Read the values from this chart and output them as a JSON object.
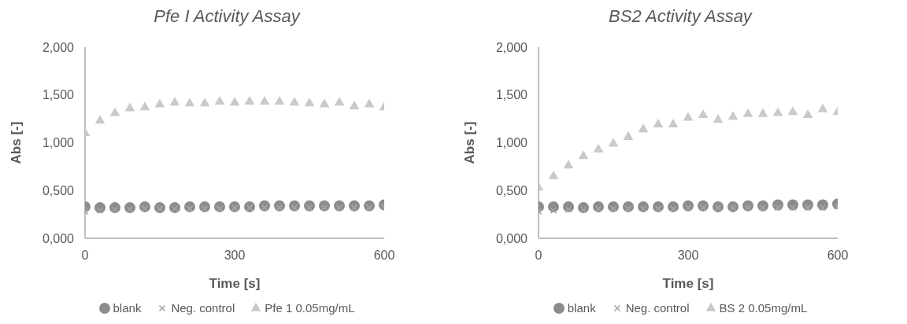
{
  "chart_data": [
    {
      "type": "scatter",
      "title": "Pfe I Activity Assay",
      "xlabel": "Time [s]",
      "ylabel": "Abs [-]",
      "x": [
        0,
        30,
        60,
        90,
        120,
        150,
        180,
        210,
        240,
        270,
        300,
        330,
        360,
        390,
        420,
        450,
        480,
        510,
        540,
        570,
        600
      ],
      "xlim": [
        0,
        600
      ],
      "xticks": [
        0,
        300,
        600
      ],
      "ylim": [
        0,
        2
      ],
      "yticks": [
        {
          "value": 0,
          "label": "0,000"
        },
        {
          "value": 0.5,
          "label": "0,500"
        },
        {
          "value": 1,
          "label": "1,000"
        },
        {
          "value": 1.5,
          "label": "1,500"
        },
        {
          "value": 2,
          "label": "2,000"
        }
      ],
      "grid": false,
      "legend": "bottom",
      "series": [
        {
          "name": "blank",
          "color": "#8c8c8c",
          "marker": "circle",
          "values": [
            0.33,
            0.32,
            0.32,
            0.32,
            0.33,
            0.32,
            0.32,
            0.33,
            0.33,
            0.33,
            0.33,
            0.33,
            0.34,
            0.34,
            0.34,
            0.34,
            0.34,
            0.34,
            0.34,
            0.34,
            0.35
          ]
        },
        {
          "name": "Neg. control",
          "color": "#a5a5a5",
          "marker": "cross",
          "values": [
            0.28,
            0.29,
            0.3,
            0.3,
            0.31,
            0.31,
            0.31,
            0.31,
            0.31,
            0.31,
            0.32,
            0.32,
            0.32,
            0.32,
            0.32,
            0.32,
            0.32,
            0.32,
            0.32,
            0.32,
            0.33
          ]
        },
        {
          "name": "Pfe 1 0.05mg/mL",
          "color": "#c9c9c9",
          "marker": "triangle",
          "values": [
            1.1,
            1.23,
            1.31,
            1.36,
            1.37,
            1.4,
            1.42,
            1.41,
            1.41,
            1.43,
            1.42,
            1.43,
            1.43,
            1.43,
            1.42,
            1.41,
            1.4,
            1.42,
            1.38,
            1.4,
            1.37
          ]
        }
      ]
    },
    {
      "type": "scatter",
      "title": "BS2 Activity Assay",
      "xlabel": "Time [s]",
      "ylabel": "Abs [-]",
      "x": [
        0,
        30,
        60,
        90,
        120,
        150,
        180,
        210,
        240,
        270,
        300,
        330,
        360,
        390,
        420,
        450,
        480,
        510,
        540,
        570,
        600
      ],
      "xlim": [
        0,
        600
      ],
      "xticks": [
        0,
        300,
        600
      ],
      "ylim": [
        0,
        2
      ],
      "yticks": [
        {
          "value": 0,
          "label": "0,000"
        },
        {
          "value": 0.5,
          "label": "0,500"
        },
        {
          "value": 1,
          "label": "1,000"
        },
        {
          "value": 1.5,
          "label": "1,500"
        },
        {
          "value": 2,
          "label": "2,000"
        }
      ],
      "grid": false,
      "legend": "bottom",
      "series": [
        {
          "name": "blank",
          "color": "#8c8c8c",
          "marker": "circle",
          "values": [
            0.33,
            0.33,
            0.33,
            0.32,
            0.33,
            0.33,
            0.33,
            0.33,
            0.33,
            0.33,
            0.34,
            0.34,
            0.33,
            0.33,
            0.34,
            0.34,
            0.35,
            0.35,
            0.35,
            0.35,
            0.36
          ]
        },
        {
          "name": "Neg. control",
          "color": "#a5a5a5",
          "marker": "cross",
          "values": [
            0.28,
            0.29,
            0.3,
            0.3,
            0.31,
            0.31,
            0.31,
            0.31,
            0.31,
            0.31,
            0.32,
            0.32,
            0.32,
            0.32,
            0.32,
            0.32,
            0.32,
            0.32,
            0.32,
            0.32,
            0.33
          ]
        },
        {
          "name": "BS 2 0.05mg/mL",
          "color": "#c9c9c9",
          "marker": "triangle",
          "values": [
            0.53,
            0.65,
            0.76,
            0.86,
            0.93,
            0.99,
            1.06,
            1.14,
            1.19,
            1.19,
            1.26,
            1.29,
            1.24,
            1.27,
            1.3,
            1.3,
            1.31,
            1.32,
            1.29,
            1.35,
            1.32
          ]
        }
      ]
    }
  ]
}
